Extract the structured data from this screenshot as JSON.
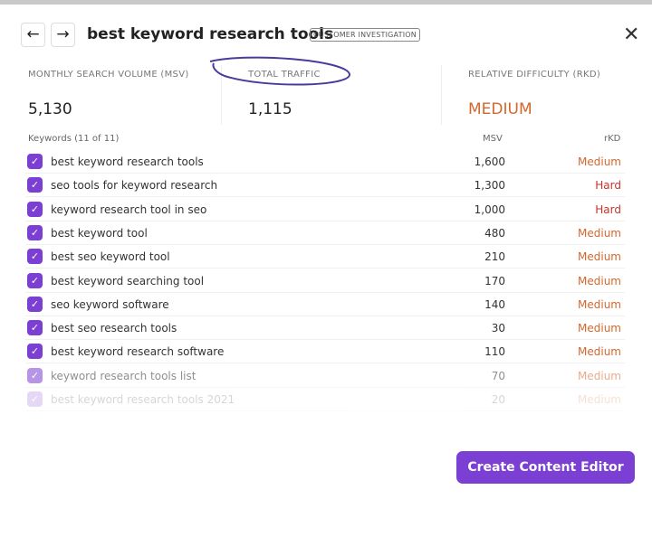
{
  "header": {
    "title": "best keyword research tools",
    "badge": "CUSTOMER INVESTIGATION",
    "back": "←",
    "forward": "→",
    "close": "✕"
  },
  "stats": [
    {
      "label": "MONTHLY SEARCH VOLUME (MSV)",
      "value": "5,130"
    },
    {
      "label": "TOTAL TRAFFIC",
      "value": "1,115"
    },
    {
      "label": "RELATIVE DIFFICULTY (RKD)",
      "value": "MEDIUM"
    }
  ],
  "colors": {
    "accent": "#7b3fd3",
    "medium": "#d2672e",
    "hard": "#c9332b"
  },
  "table": {
    "headers": {
      "keywords": "Keywords (11 of 11)",
      "msv": "MSV",
      "rkd": "rKD"
    },
    "rows": [
      {
        "keyword": "best keyword research tools",
        "msv": "1,600",
        "rkd": "Medium",
        "checked": true
      },
      {
        "keyword": "seo tools for keyword research",
        "msv": "1,300",
        "rkd": "Hard",
        "checked": true
      },
      {
        "keyword": "keyword research tool in seo",
        "msv": "1,000",
        "rkd": "Hard",
        "checked": true
      },
      {
        "keyword": "best keyword tool",
        "msv": "480",
        "rkd": "Medium",
        "checked": true
      },
      {
        "keyword": "best seo keyword tool",
        "msv": "210",
        "rkd": "Medium",
        "checked": true
      },
      {
        "keyword": "best keyword searching tool",
        "msv": "170",
        "rkd": "Medium",
        "checked": true
      },
      {
        "keyword": "seo keyword software",
        "msv": "140",
        "rkd": "Medium",
        "checked": true
      },
      {
        "keyword": "best seo research tools",
        "msv": "30",
        "rkd": "Medium",
        "checked": true
      },
      {
        "keyword": "best keyword research software",
        "msv": "110",
        "rkd": "Medium",
        "checked": true
      },
      {
        "keyword": "keyword research tools list",
        "msv": "70",
        "rkd": "Medium",
        "checked": true
      },
      {
        "keyword": "best keyword research tools 2021",
        "msv": "20",
        "rkd": "Medium",
        "checked": true
      }
    ]
  },
  "button": {
    "label": "Create Content Editor"
  }
}
